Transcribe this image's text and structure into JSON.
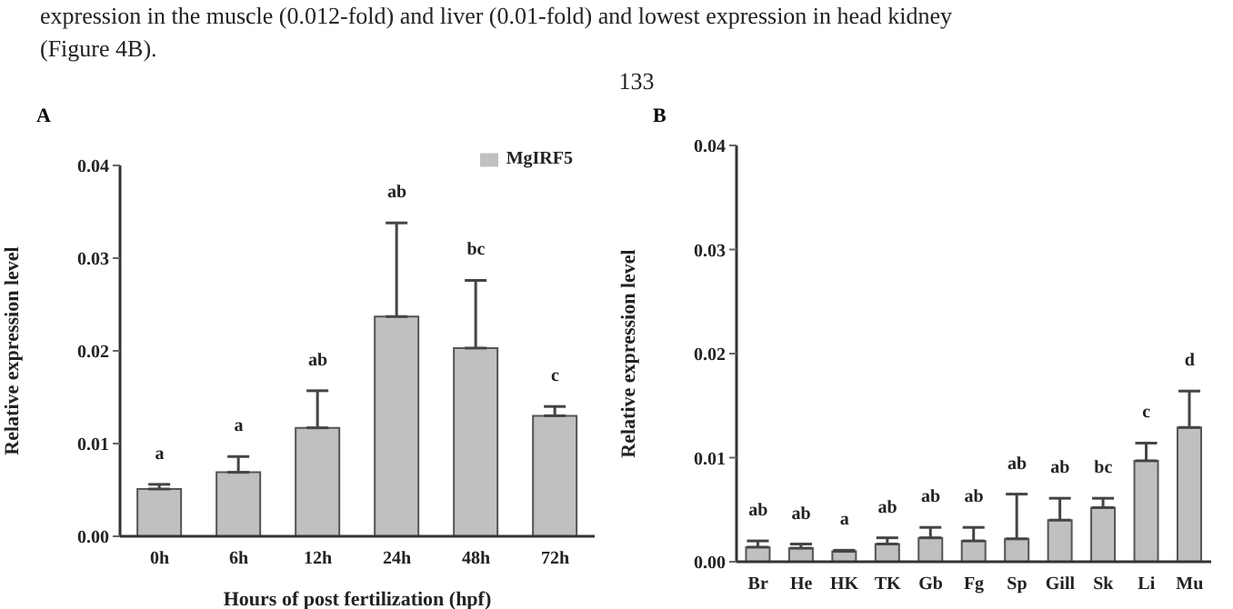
{
  "chart_data": [
    {
      "type": "bar",
      "title": "A",
      "xlabel": "Hours of post fertilization (hpf)",
      "ylabel": "Relative expression level",
      "categories": [
        "0h",
        "6h",
        "12h",
        "24h",
        "48h",
        "72h"
      ],
      "series": [
        {
          "name": "MgIRF5",
          "color": "#c0c0c0",
          "values": [
            0.0051,
            0.0069,
            0.0117,
            0.0237,
            0.0203,
            0.013
          ],
          "errors": [
            [
              0.0051,
              0.0056
            ],
            [
              0.0069,
              0.0086
            ],
            [
              0.0117,
              0.0157
            ],
            [
              0.0237,
              0.0338
            ],
            [
              0.0203,
              0.0276
            ],
            [
              0.013,
              0.014
            ]
          ]
        }
      ],
      "ylim": [
        0,
        0.04
      ],
      "yticks": [
        {
          "value": 0,
          "label": "0.00"
        },
        {
          "value": 0.01,
          "label": "0.01"
        },
        {
          "value": 0.02,
          "label": "0.02"
        },
        {
          "value": 0.03,
          "label": "0.03"
        },
        {
          "value": 0.04,
          "label": "0.04"
        }
      ],
      "legend": "top right",
      "grid": false,
      "annotations": [
        "expression in the muscle (0.012-fold) and liver (0.01-fold) and lowest expression in head kidney",
        "(Figure 4B).",
        "133",
        "a",
        "a",
        "ab",
        "ab",
        "bc",
        "c"
      ]
    },
    {
      "type": "bar",
      "title": "B",
      "ylabel": "Relative expression level",
      "categories": [
        "Br",
        "He",
        "HK",
        "TK",
        "Gb",
        "Fg",
        "Sp",
        "Gill",
        "Sk",
        "Li",
        "Mu"
      ],
      "series": [
        {
          "color": "#c0c0c0",
          "values": [
            0.0014,
            0.0013,
            0.001,
            0.0017,
            0.0023,
            0.002,
            0.0022,
            0.004,
            0.0052,
            0.0097,
            0.0129
          ],
          "errors": [
            [
              0.0014,
              0.002
            ],
            [
              0.0013,
              0.0017
            ],
            [
              0.001,
              0.0011
            ],
            [
              0.0017,
              0.0023
            ],
            [
              0.0023,
              0.0033
            ],
            [
              0.002,
              0.0033
            ],
            [
              0.0022,
              0.0065
            ],
            [
              0.004,
              0.0061
            ],
            [
              0.0052,
              0.0061
            ],
            [
              0.0097,
              0.0114
            ],
            [
              0.0129,
              0.0164
            ]
          ]
        }
      ],
      "ylim": [
        0,
        0.04
      ],
      "yticks": [
        {
          "value": 0,
          "label": "0.00"
        },
        {
          "value": 0.01,
          "label": "0.01"
        },
        {
          "value": 0.02,
          "label": "0.02"
        },
        {
          "value": 0.03,
          "label": "0.03"
        },
        {
          "value": 0.04,
          "label": "0.04"
        }
      ],
      "grid": false,
      "annotations": [
        "ab",
        "ab",
        "a",
        "ab",
        "ab",
        "ab",
        "ab",
        "ab",
        "bc",
        "c",
        "d"
      ]
    }
  ]
}
